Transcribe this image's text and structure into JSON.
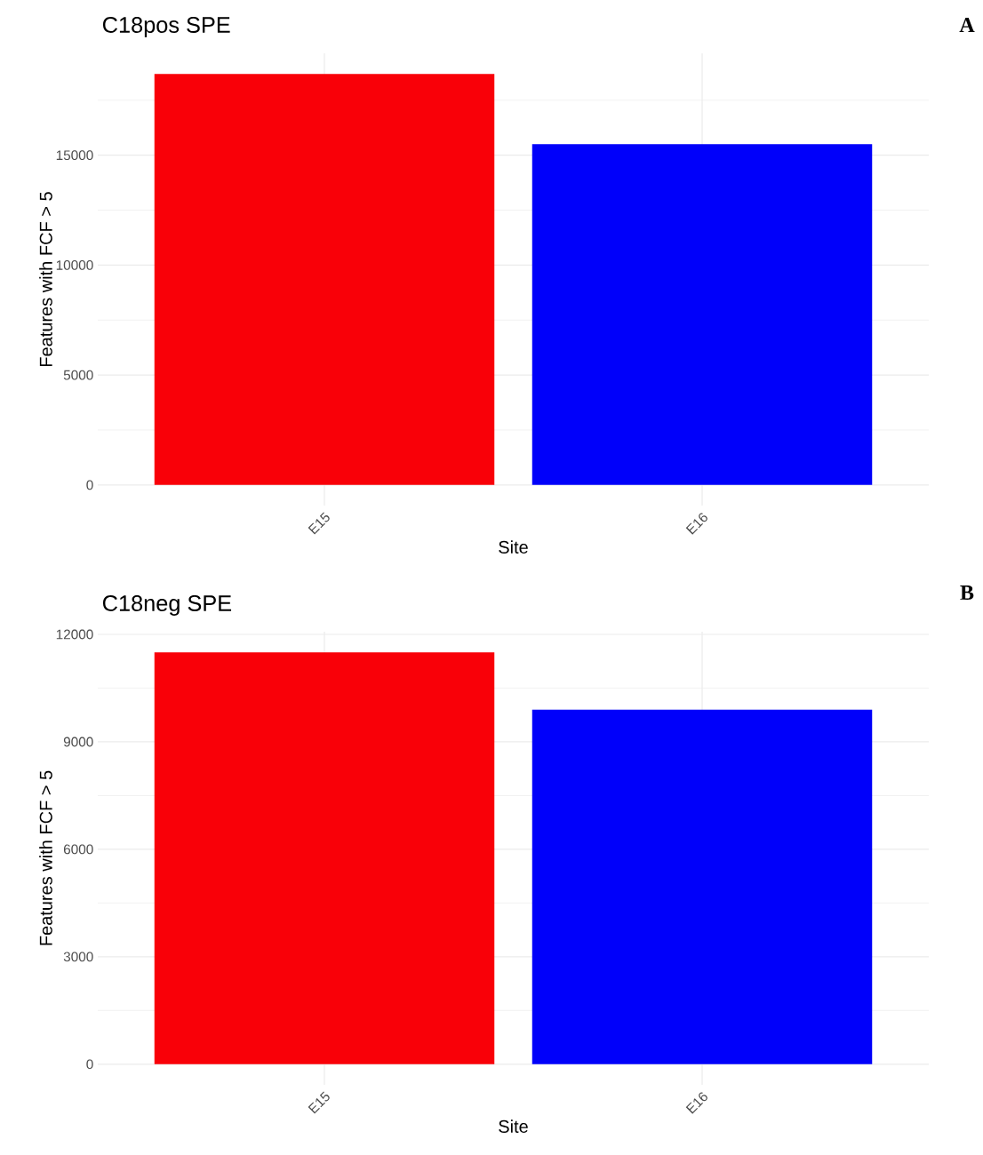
{
  "chart_data": [
    {
      "type": "bar",
      "title": "C18pos SPE",
      "xlabel": "Site",
      "ylabel": "Features with FCF > 5",
      "categories": [
        "E15",
        "E16"
      ],
      "values": [
        18700,
        15500
      ],
      "colors": [
        "#f90008",
        "#0000fa"
      ],
      "ylim": [
        -935,
        19635
      ],
      "yticks": [
        0,
        {
          "value": 2500,
          "label": null
        },
        5000,
        {
          "value": 7500,
          "label": null
        },
        10000,
        {
          "value": 12500,
          "label": null
        },
        15000,
        {
          "value": 17500,
          "label": null
        }
      ],
      "grid": true,
      "annotations": [
        "A"
      ]
    },
    {
      "type": "bar",
      "title": "C18neg SPE",
      "xlabel": "Site",
      "ylabel": "Features with FCF > 5",
      "categories": [
        "E15",
        "E16"
      ],
      "values": [
        11500,
        9900
      ],
      "colors": [
        "#f90008",
        "#0000fa"
      ],
      "ylim": [
        -575,
        12075
      ],
      "yticks": [
        0,
        {
          "value": 1500,
          "label": null
        },
        3000,
        {
          "value": 4500,
          "label": null
        },
        6000,
        {
          "value": 7500,
          "label": null
        },
        9000,
        {
          "value": 10500,
          "label": null
        },
        12000
      ],
      "grid": true,
      "annotations": [
        "B"
      ]
    }
  ]
}
